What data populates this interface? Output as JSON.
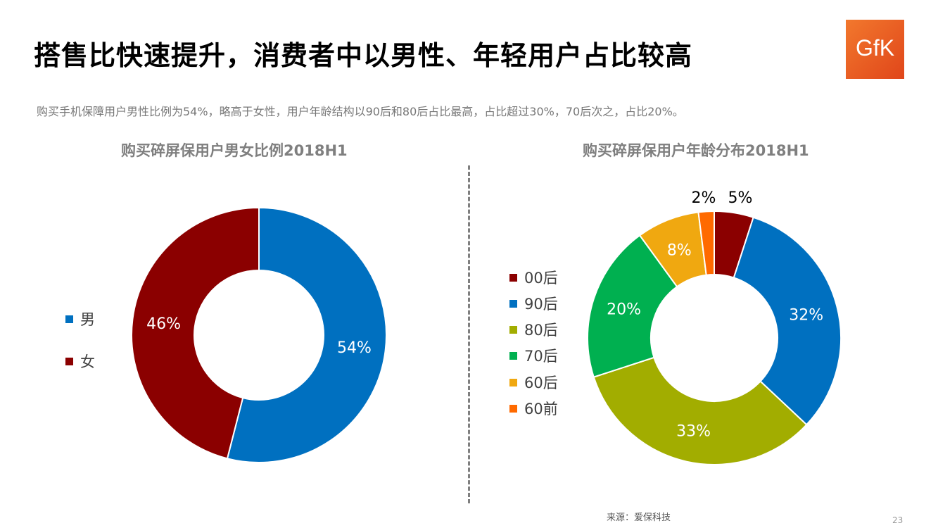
{
  "title": "搭售比快速提升，消费者中以男性、年轻用户占比较高",
  "logo": "GfK",
  "subtitle": "购买手机保障用户男性比例为54%，略高于女性，用户年龄结构以90后和80后占比最高，占比超过30%，70后次之，占比20%。",
  "source": "来源：爱保科技",
  "page_number": "23",
  "chart_data": [
    {
      "type": "donut",
      "title": "购买碎屏保用户男女比例2018H1",
      "legend_position": "left",
      "categories": [
        "男",
        "女"
      ],
      "values": [
        54,
        46
      ],
      "labels": [
        "54%",
        "46%"
      ],
      "colors": [
        "#0070C0",
        "#8B0000"
      ]
    },
    {
      "type": "donut",
      "title": "购买碎屏保用户年龄分布2018H1",
      "legend_position": "left",
      "categories": [
        "00后",
        "90后",
        "80后",
        "70后",
        "60后",
        "60前"
      ],
      "values": [
        5,
        32,
        33,
        20,
        8,
        2
      ],
      "labels": [
        "5%",
        "32%",
        "33%",
        "20%",
        "8%",
        "2%"
      ],
      "colors": [
        "#8B0000",
        "#0070C0",
        "#A2AD00",
        "#00B050",
        "#F0A810",
        "#FF6A00"
      ]
    }
  ]
}
